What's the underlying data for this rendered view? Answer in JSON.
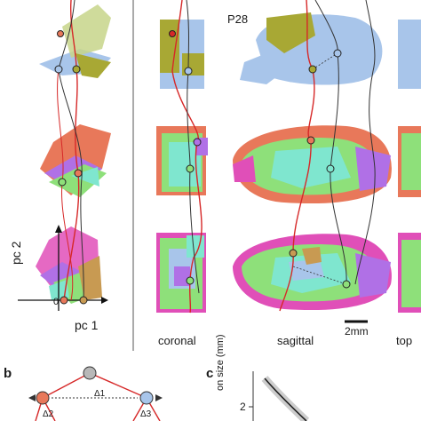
{
  "figure": {
    "age_label": "P28",
    "scale_bar_label": "2mm",
    "pc_axes": {
      "x_label": "pc 1",
      "y_label": "pc 2",
      "origin_label": "0"
    },
    "views": [
      "coronal",
      "sagittal",
      "top"
    ],
    "panels": {
      "b": {
        "letter": "b",
        "delta_top": "Δ1",
        "delta_left": "Δ2",
        "delta_right": "Δ3"
      },
      "c": {
        "letter": "c",
        "ylabel": "on size (mm)",
        "tick": "2"
      }
    },
    "colors": {
      "blue": "#a8c5ea",
      "olive": "#a8a834",
      "orange": "#e8785a",
      "green": "#8ee07a",
      "cyan": "#7fe6cf",
      "purple": "#b070e6",
      "magenta": "#e04fb8",
      "tan": "#c89a52",
      "lineage_red": "#d62828",
      "lineage_dark": "#333333"
    }
  }
}
